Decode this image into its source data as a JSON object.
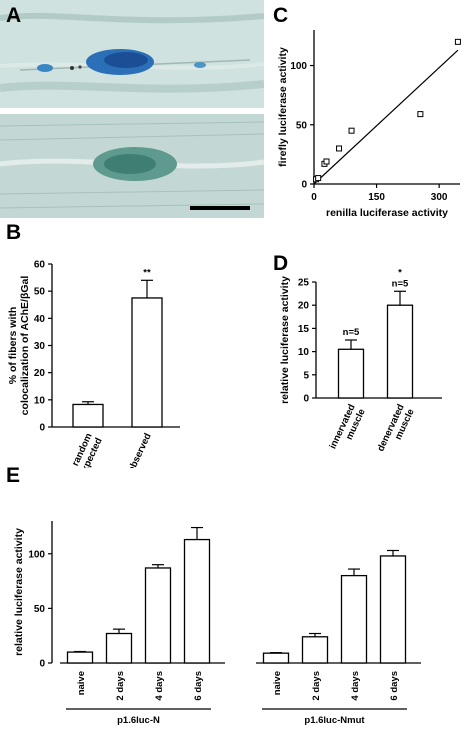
{
  "panels": {
    "a": "A",
    "b": "B",
    "c": "C",
    "d": "D",
    "e": "E"
  },
  "colors": {
    "tissue": "#c8dbd8",
    "tissue_dark": "#a9c2bf",
    "stain_blue": "#1565b3",
    "stain_teal": "#3f8f80",
    "ink": "#000000"
  },
  "chart_data": [
    {
      "panel": "B",
      "type": "bar",
      "categories": [
        "random\nexpected",
        "observed"
      ],
      "values": [
        8.3,
        47.5
      ],
      "errors": [
        1.0,
        6.5
      ],
      "annotations": [
        "",
        "**"
      ],
      "ylabel": "% of fibers with colocalization of AChE/βGal",
      "ylim": [
        0,
        60
      ],
      "yticks": [
        0,
        10,
        20,
        30,
        40,
        50,
        60
      ]
    },
    {
      "panel": "C",
      "type": "scatter",
      "x": [
        5,
        10,
        25,
        30,
        60,
        90,
        255,
        345
      ],
      "y": [
        4,
        5,
        17,
        19,
        30,
        45,
        59,
        120
      ],
      "fit_line": {
        "x": [
          0,
          345
        ],
        "y": [
          -3,
          113
        ]
      },
      "xlabel": "renilla luciferase activity",
      "ylabel": "firefly luciferase activity",
      "xlim": [
        0,
        350
      ],
      "ylim": [
        0,
        130
      ],
      "xticks": [
        0,
        150,
        300
      ],
      "yticks": [
        0,
        50,
        100
      ]
    },
    {
      "panel": "D",
      "type": "bar",
      "categories": [
        "innervated\nmuscle",
        "denervated\nmuscle"
      ],
      "values": [
        10.5,
        20.0
      ],
      "errors": [
        2.0,
        3.0
      ],
      "annotations": [
        "n=5",
        "*\nn=5"
      ],
      "ylabel": "relative luciferase activity",
      "ylim": [
        0,
        25
      ],
      "yticks": [
        0,
        5,
        10,
        15,
        20,
        25
      ]
    },
    {
      "panel": "E",
      "type": "bar",
      "groups": [
        "p1.6luc-N",
        "p1.6luc-Nmut"
      ],
      "categories": [
        "naive",
        "2 days",
        "4 days",
        "6 days"
      ],
      "series": [
        {
          "values": [
            10,
            27,
            87,
            113
          ],
          "errors": [
            0.5,
            4,
            3,
            11
          ]
        },
        {
          "values": [
            9,
            24,
            80,
            98
          ],
          "errors": [
            0.5,
            3,
            6,
            5
          ]
        }
      ],
      "ylabel": "relative luciferase activity",
      "ylim": [
        0,
        130
      ],
      "yticks": [
        0,
        50,
        100
      ]
    }
  ]
}
